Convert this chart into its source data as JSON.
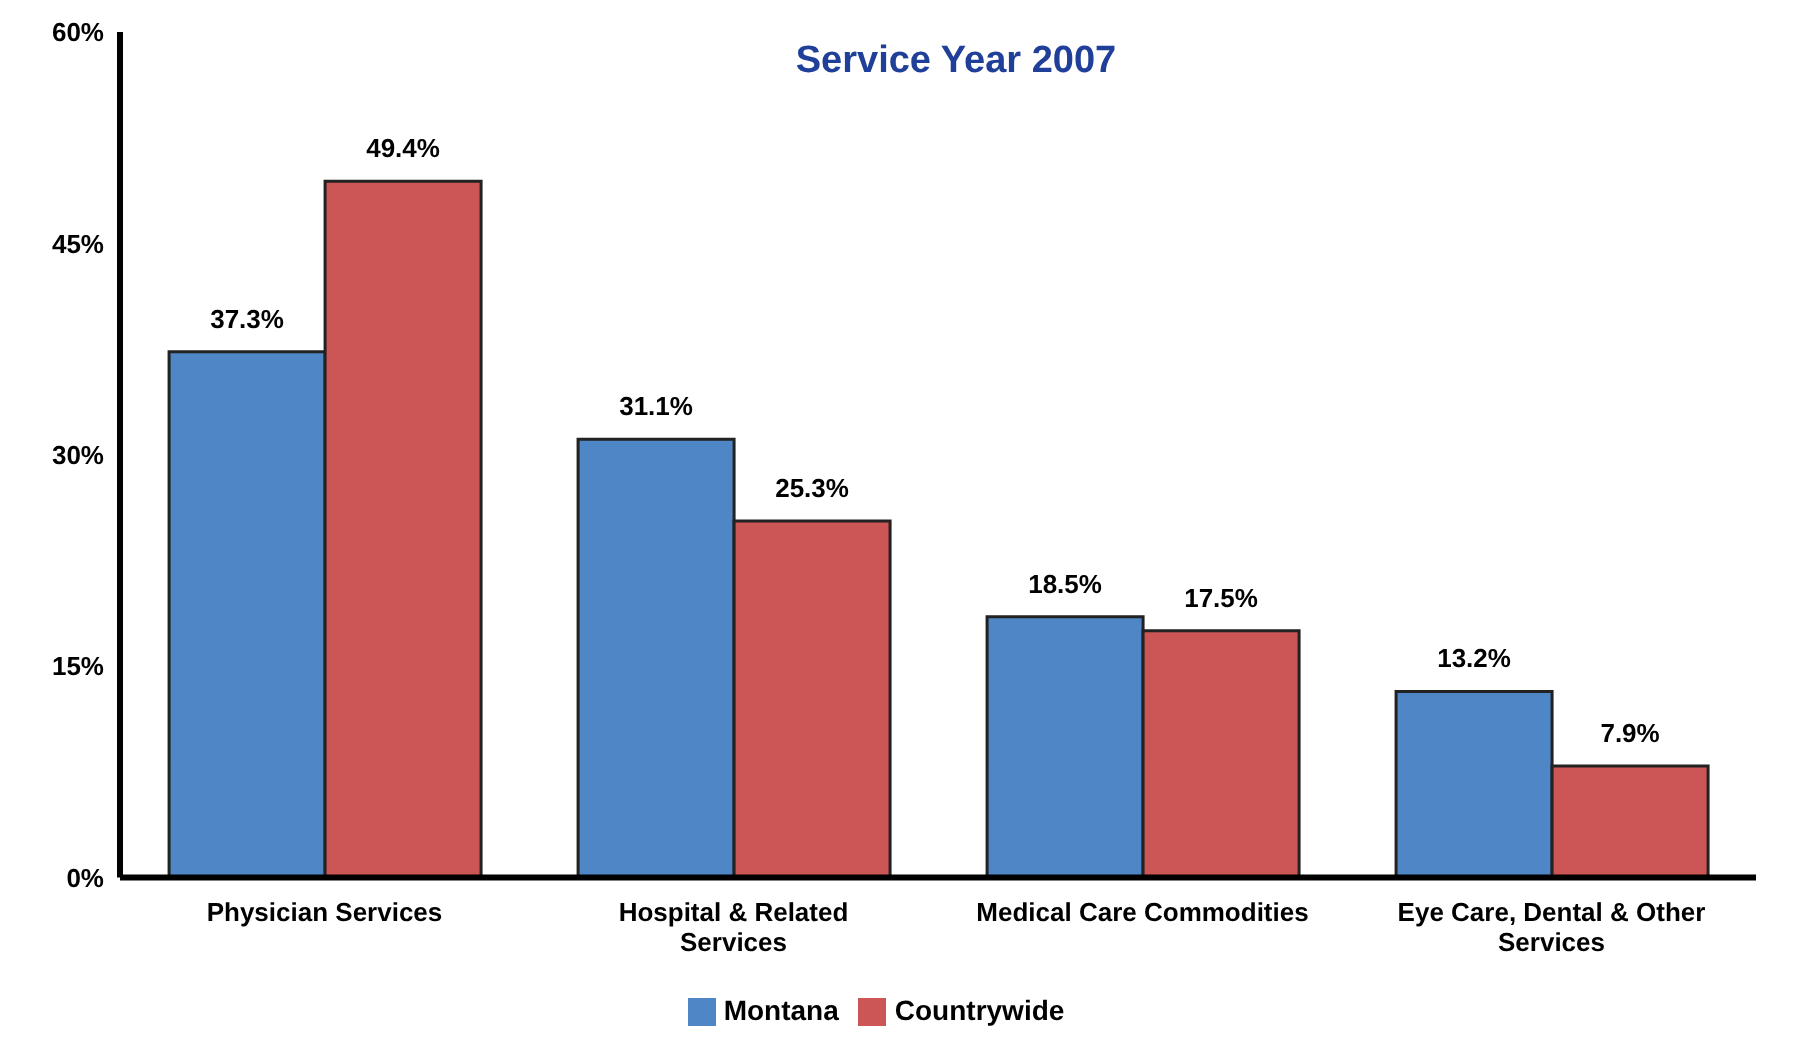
{
  "chart_data": {
    "type": "bar",
    "title": "Service Year 2007",
    "categories": [
      "Physician Services",
      "Hospital & Related Services",
      "Medical Care Commodities",
      "Eye Care, Dental & Other Services"
    ],
    "series": [
      {
        "name": "Montana",
        "color": "#4f86c6",
        "values": [
          37.3,
          31.1,
          18.5,
          13.2
        ],
        "value_labels": [
          "37.3%",
          "31.1%",
          "18.5%",
          "13.2%"
        ]
      },
      {
        "name": "Countrywide",
        "color": "#cc5555",
        "values": [
          49.4,
          25.3,
          17.5,
          7.9
        ],
        "value_labels": [
          "49.4%",
          "25.3%",
          "17.5%",
          "7.9%"
        ]
      }
    ],
    "ylim": [
      0,
      60
    ],
    "yticks": [
      {
        "value": 0,
        "label": "0%"
      },
      {
        "value": 15,
        "label": "15%"
      },
      {
        "value": 30,
        "label": "30%"
      },
      {
        "value": 45,
        "label": "45%"
      },
      {
        "value": 60,
        "label": "60%"
      }
    ],
    "legend": "bottom"
  }
}
